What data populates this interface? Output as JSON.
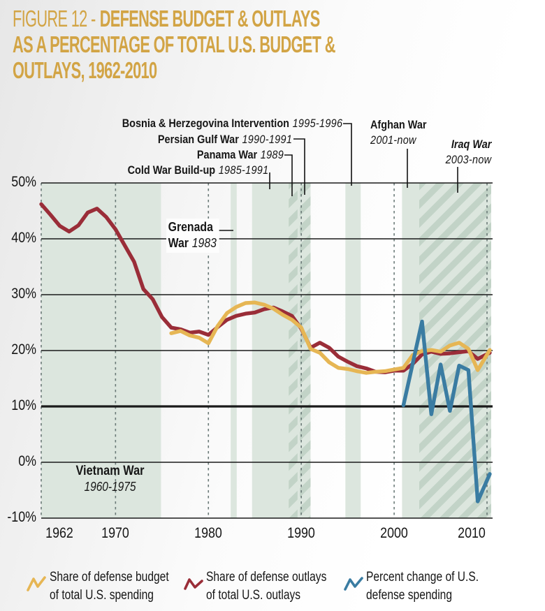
{
  "title": {
    "figure": "FIGURE 12 -",
    "line1_bold": "DEFENSE BUDGET & OUTLAYS",
    "line2": "AS A PERCENTAGE OF TOTAL U.S. BUDGET &",
    "line3": "OUTLAYS, 1962-2010"
  },
  "annotations": {
    "bosnia": {
      "label": "Bosnia & Herzegovina Intervention",
      "years": "1995-1996"
    },
    "persian_gulf": {
      "label": "Persian Gulf War",
      "years": "1990-1991"
    },
    "panama": {
      "label": "Panama War",
      "years": "1989"
    },
    "cold_war": {
      "label": "Cold War Build-up",
      "years": "1985-1991"
    },
    "afghan": {
      "label": "Afghan War",
      "years": "2001-now"
    },
    "iraq": {
      "label": "Iraq War",
      "years": "2003-now"
    },
    "grenada": {
      "label_line1": "Grenada",
      "label_line2": "War",
      "years": "1983"
    },
    "vietnam": {
      "label": "Vietnam War",
      "years": "1960-1975"
    }
  },
  "legend": {
    "items": [
      {
        "line1": "Share of defense budget",
        "line2": "of total U.S. spending",
        "color": "#E6B654"
      },
      {
        "line1": "Share of defense outlays",
        "line2": "of total U.S. outlays",
        "color": "#9A2D38"
      },
      {
        "line1": "Percent change of U.S.",
        "line2": "defense spending",
        "color": "#3A7CA2"
      }
    ]
  },
  "colors": {
    "title_gold": "#D2A445",
    "line_gold": "#E6B654",
    "line_red": "#9A2D38",
    "line_blue": "#3A7CA2",
    "region_green": "#DCE6DE",
    "hatch_green": "#C2D3C7",
    "grid": "#1A1A1A",
    "dashed_line": "#6B7A78",
    "leader": "#121212",
    "text": "#161616"
  },
  "chart_data": {
    "type": "line",
    "title": "Defense Budget & Outlays as a Percentage of Total U.S. Budget & Outlays, 1962-2010",
    "xlabel": "",
    "ylabel": "",
    "xlim": [
      1962,
      2010.45
    ],
    "ylim": [
      -10,
      50
    ],
    "grid": "horizontal solid black lines every 10%, bold line at 10%, dashed vertical lines at decade ticks",
    "legend_position": "bottom",
    "emphasized_ytick": 10,
    "yticks": [
      {
        "value": 50,
        "label": "50%"
      },
      {
        "value": 40,
        "label": "40%"
      },
      {
        "value": 30,
        "label": "30%"
      },
      {
        "value": 20,
        "label": "20%"
      },
      {
        "value": 10,
        "label": "10%"
      },
      {
        "value": 0,
        "label": "0%"
      },
      {
        "value": -10,
        "label": "-10%"
      }
    ],
    "xticks": [
      {
        "year": 1962,
        "label": "1962"
      },
      {
        "year": 1970,
        "label": "1970"
      },
      {
        "year": 1980,
        "label": "1980"
      },
      {
        "year": 1990,
        "label": "1990"
      },
      {
        "year": 2000,
        "label": "2000"
      },
      {
        "year": 2010,
        "label": "2010"
      }
    ],
    "regions": [
      {
        "label": "Vietnam War",
        "years_label": "1960-1975",
        "start": 1962,
        "end": 1974.9,
        "style": "solid"
      },
      {
        "label": "Grenada War",
        "years_label": "1983",
        "start": 1982.4,
        "end": 1983.05,
        "style": "solid"
      },
      {
        "label": "Cold War Build-up",
        "years_label": "1985-1991",
        "start": 1984.7,
        "end": 1991,
        "style": "solid"
      },
      {
        "label": "Panama War",
        "years_label": "1989",
        "start": 1988.65,
        "end": 1989.6,
        "style": "hatched"
      },
      {
        "label": "Persian Gulf War",
        "years_label": "1990-1991",
        "start": 1989.85,
        "end": 1991,
        "style": "hatched"
      },
      {
        "label": "Bosnia & Herzegovina Intervention",
        "years_label": "1995-1996",
        "start": 1994.75,
        "end": 1996.4,
        "style": "solid"
      },
      {
        "label": "Afghan War",
        "years_label": "2001-now",
        "start": 2000.85,
        "end": 2010.45,
        "style": "solid"
      },
      {
        "label": "Iraq War",
        "years_label": "2003-now",
        "start": 2002.7,
        "end": 2010.45,
        "style": "hatched"
      }
    ],
    "series": [
      {
        "name": "Share of defense outlays of total U.S. outlays",
        "color": "#9A2D38",
        "points": [
          [
            1962,
            46.2
          ],
          [
            1963,
            44.3
          ],
          [
            1964,
            42.3
          ],
          [
            1965,
            41.3
          ],
          [
            1966,
            42.4
          ],
          [
            1967,
            44.7
          ],
          [
            1968,
            45.4
          ],
          [
            1969,
            43.9
          ],
          [
            1970,
            41.7
          ],
          [
            1971,
            38.8
          ],
          [
            1972,
            35.9
          ],
          [
            1973,
            31.0
          ],
          [
            1974,
            29.2
          ],
          [
            1975,
            26.0
          ],
          [
            1976,
            24.1
          ],
          [
            1977,
            23.8
          ],
          [
            1978,
            23.2
          ],
          [
            1979,
            23.4
          ],
          [
            1980,
            22.8
          ],
          [
            1981,
            24.2
          ],
          [
            1982,
            25.5
          ],
          [
            1983,
            26.2
          ],
          [
            1984,
            26.6
          ],
          [
            1985,
            26.8
          ],
          [
            1986,
            27.4
          ],
          [
            1987,
            27.7
          ],
          [
            1988,
            27.0
          ],
          [
            1989,
            26.2
          ],
          [
            1990,
            23.9
          ],
          [
            1991,
            20.5
          ],
          [
            1992,
            21.4
          ],
          [
            1993,
            20.5
          ],
          [
            1994,
            18.9
          ],
          [
            1995,
            18.0
          ],
          [
            1996,
            17.2
          ],
          [
            1997,
            16.8
          ],
          [
            1998,
            16.2
          ],
          [
            1999,
            16.1
          ],
          [
            2000,
            16.4
          ],
          [
            2001,
            16.4
          ],
          [
            2002,
            17.6
          ],
          [
            2003,
            19.3
          ],
          [
            2004,
            19.8
          ],
          [
            2005,
            19.4
          ],
          [
            2006,
            19.5
          ],
          [
            2007,
            19.7
          ],
          [
            2008,
            19.9
          ],
          [
            2009,
            18.5
          ],
          [
            2010.3,
            19.6
          ]
        ]
      },
      {
        "name": "Share of defense budget of total U.S. spending",
        "color": "#E6B654",
        "points": [
          [
            1976,
            23.1
          ],
          [
            1977,
            23.5
          ],
          [
            1978,
            22.7
          ],
          [
            1979,
            22.3
          ],
          [
            1980,
            21.3
          ],
          [
            1981,
            24.4
          ],
          [
            1982,
            26.7
          ],
          [
            1983,
            27.8
          ],
          [
            1984,
            28.5
          ],
          [
            1985,
            28.6
          ],
          [
            1986,
            28.2
          ],
          [
            1987,
            27.5
          ],
          [
            1988,
            26.4
          ],
          [
            1989,
            25.5
          ],
          [
            1990,
            24.1
          ],
          [
            1991,
            20.3
          ],
          [
            1992,
            19.6
          ],
          [
            1993,
            17.9
          ],
          [
            1994,
            16.9
          ],
          [
            1995,
            16.7
          ],
          [
            1996,
            16.3
          ],
          [
            1997,
            16.0
          ],
          [
            1998,
            16.2
          ],
          [
            1999,
            16.3
          ],
          [
            2000,
            16.6
          ],
          [
            2001,
            16.9
          ],
          [
            2002,
            19.2
          ],
          [
            2003,
            19.9
          ],
          [
            2004,
            20.1
          ],
          [
            2005,
            19.8
          ],
          [
            2006,
            20.9
          ],
          [
            2007,
            21.4
          ],
          [
            2008,
            20.3
          ],
          [
            2009,
            16.5
          ],
          [
            2010.3,
            20.1
          ]
        ]
      },
      {
        "name": "Percent change of U.S. defense spending",
        "color": "#3A7CA2",
        "points": [
          [
            2001,
            10.2
          ],
          [
            2003,
            25.2
          ],
          [
            2004,
            8.6
          ],
          [
            2005,
            17.5
          ],
          [
            2006,
            9.2
          ],
          [
            2007,
            17.3
          ],
          [
            2008,
            16.5
          ],
          [
            2009,
            -7.0
          ],
          [
            2010.3,
            -2.1
          ]
        ]
      }
    ]
  }
}
